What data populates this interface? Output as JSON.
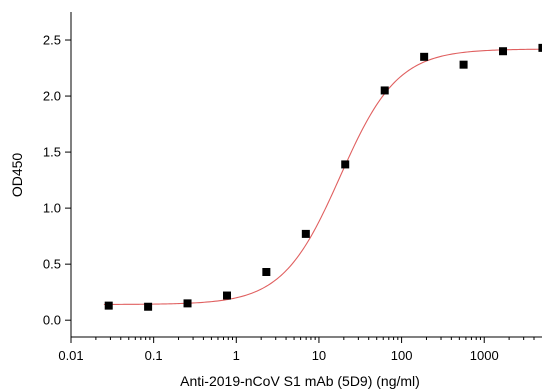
{
  "chart_data": {
    "type": "scatter",
    "title": "",
    "xlabel": "Anti-2019-nCoV S1 mAb (5D9) (ng/ml)",
    "ylabel": "OD450",
    "x_scale": "log",
    "xlim": [
      0.01,
      5000
    ],
    "ylim": [
      -0.15,
      2.75
    ],
    "x_ticks": [
      {
        "value": 0.01,
        "label": "0.01"
      },
      {
        "value": 0.1,
        "label": "0.1"
      },
      {
        "value": 1,
        "label": "1"
      },
      {
        "value": 10,
        "label": "10"
      },
      {
        "value": 100,
        "label": "100"
      },
      {
        "value": 1000,
        "label": "1000"
      }
    ],
    "y_ticks": [
      {
        "value": 0.0,
        "label": "0.0"
      },
      {
        "value": 0.5,
        "label": "0.5"
      },
      {
        "value": 1.0,
        "label": "1.0"
      },
      {
        "value": 1.5,
        "label": "1.5"
      },
      {
        "value": 2.0,
        "label": "2.0"
      },
      {
        "value": 2.5,
        "label": "2.5"
      }
    ],
    "grid": false,
    "series": [
      {
        "type": "scatter",
        "color": "#000000",
        "points": [
          {
            "x": 0.0286,
            "y": 0.13
          },
          {
            "x": 0.0857,
            "y": 0.12
          },
          {
            "x": 0.257,
            "y": 0.15
          },
          {
            "x": 0.772,
            "y": 0.22
          },
          {
            "x": 2.31,
            "y": 0.43
          },
          {
            "x": 6.94,
            "y": 0.77
          },
          {
            "x": 20.8,
            "y": 1.39
          },
          {
            "x": 62.5,
            "y": 2.05
          },
          {
            "x": 187.5,
            "y": 2.35
          },
          {
            "x": 562.5,
            "y": 2.28
          },
          {
            "x": 1687.5,
            "y": 2.4
          },
          {
            "x": 5062.5,
            "y": 2.43
          }
        ]
      },
      {
        "type": "fit-line",
        "color": "#e06060",
        "model": "four-parameter logistic",
        "bottom": 0.14,
        "top": 2.42,
        "ec50": 18,
        "hill": 1.25
      }
    ]
  }
}
